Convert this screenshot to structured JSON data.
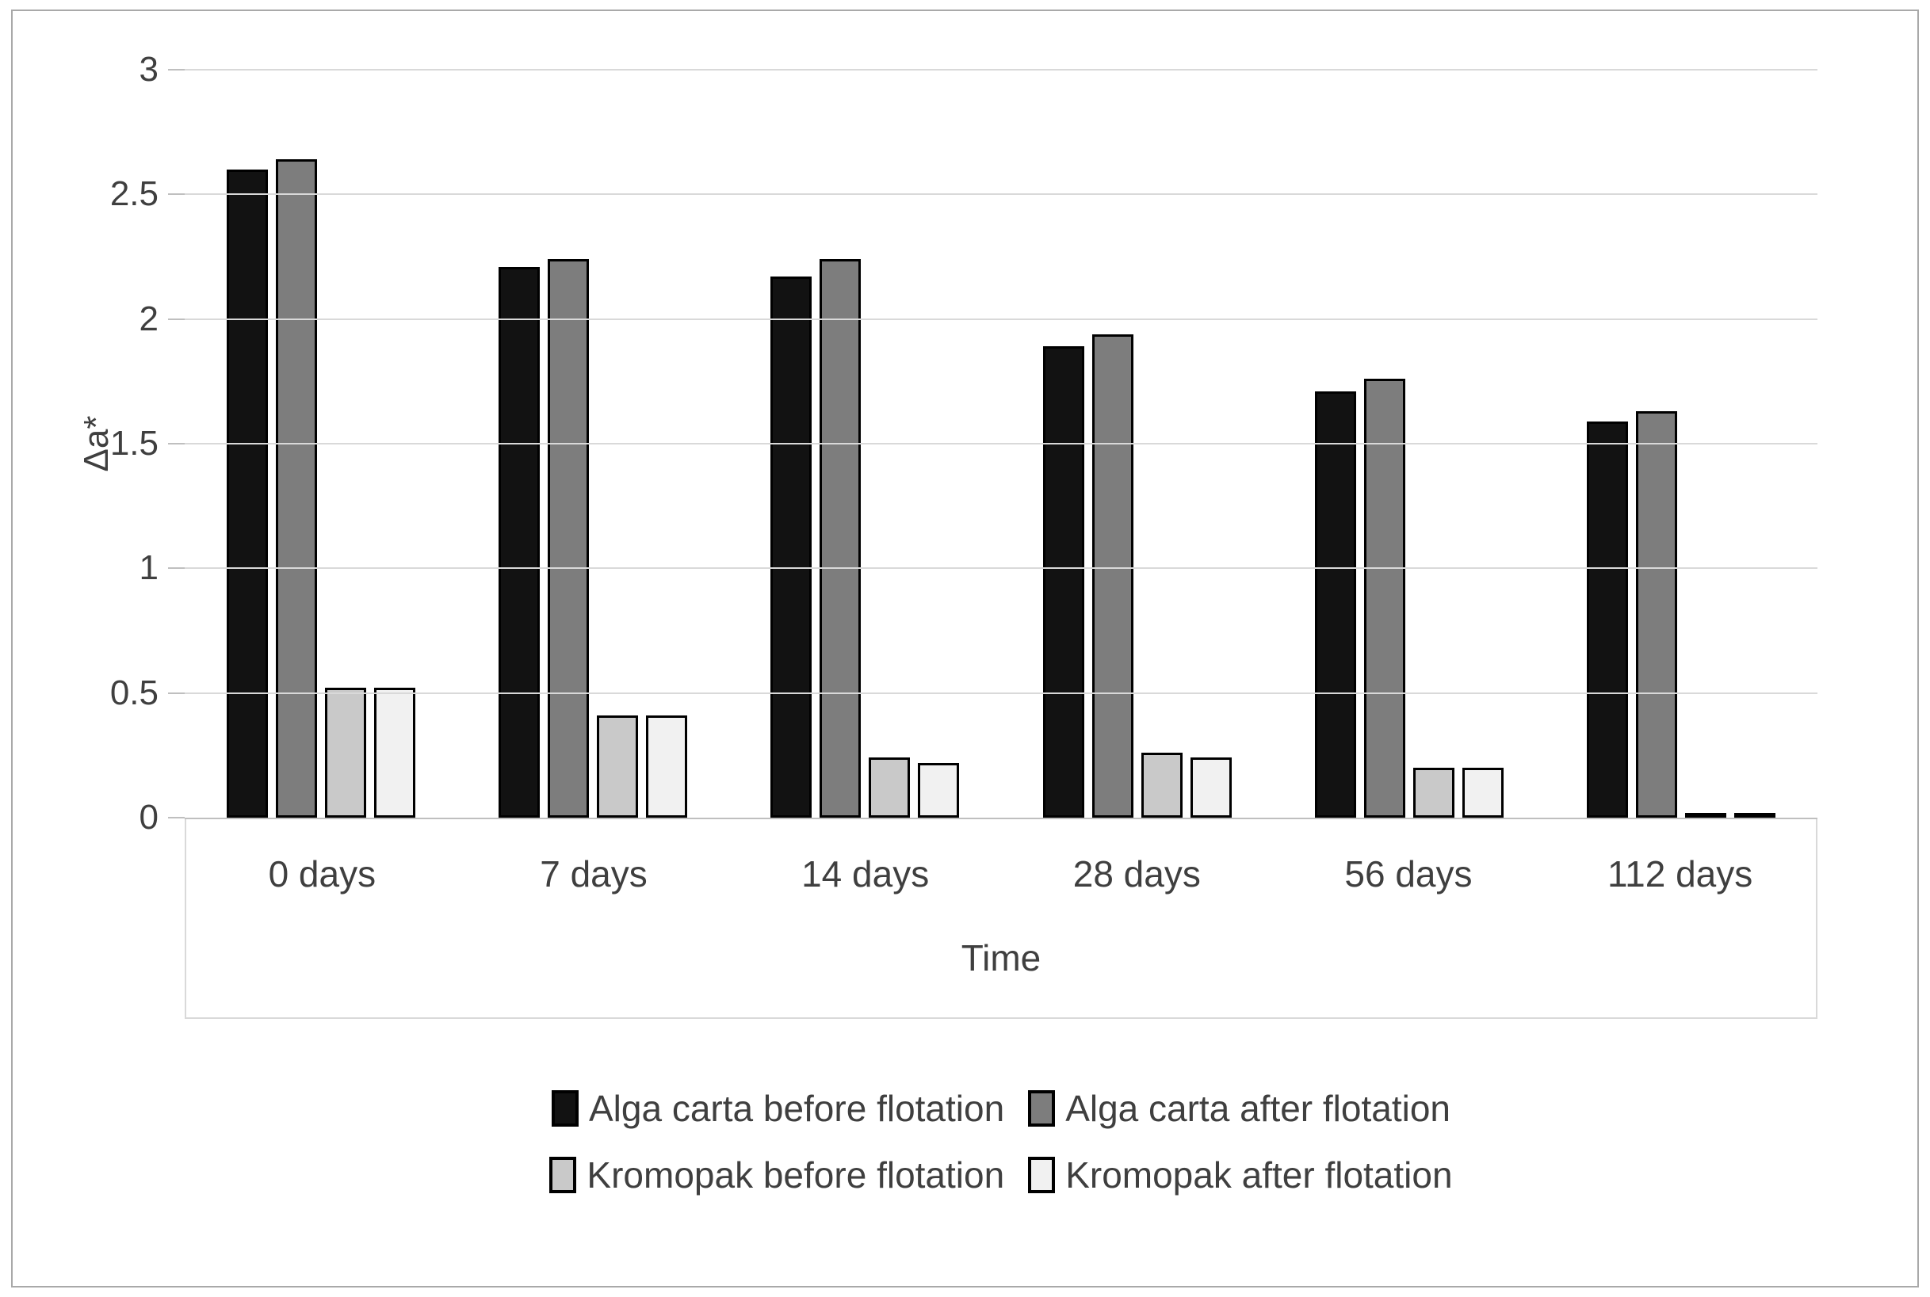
{
  "chart_data": {
    "type": "bar",
    "title": "",
    "categories": [
      "0 days",
      "7 days",
      "14 days",
      "28 days",
      "56 days",
      "112 days"
    ],
    "series": [
      {
        "name": "Alga carta before flotation",
        "color": "#121212",
        "values": [
          2.6,
          2.21,
          2.17,
          1.89,
          1.71,
          1.59
        ]
      },
      {
        "name": "Alga carta after flotation",
        "color": "#7d7d7d",
        "values": [
          2.64,
          2.24,
          2.24,
          1.94,
          1.76,
          1.63
        ]
      },
      {
        "name": "Kromopak before flotation",
        "color": "#c9c9c9",
        "values": [
          0.52,
          0.41,
          0.24,
          0.26,
          0.2,
          0.02
        ]
      },
      {
        "name": "Kromopak after flotation",
        "color": "#f1f1f1",
        "values": [
          0.52,
          0.41,
          0.22,
          0.24,
          0.2,
          0.02
        ]
      }
    ],
    "xlabel": "Time",
    "ylabel": "Δa*",
    "ylim": [
      0,
      3
    ],
    "ytick_step": 0.5,
    "yticks": [
      "3",
      "2.5",
      "2",
      "1.5",
      "1",
      "0.5",
      "0"
    ],
    "grid": true,
    "legend_position": "bottom",
    "legend_rows": [
      [
        0,
        1
      ],
      [
        2,
        3
      ]
    ],
    "colors": {
      "gridline": "#d9d9d9",
      "axis_line": "#bfbfbf",
      "bar_border": "#000000",
      "text": "#3f3f3f",
      "frame_border": "#a9a9a9"
    }
  }
}
